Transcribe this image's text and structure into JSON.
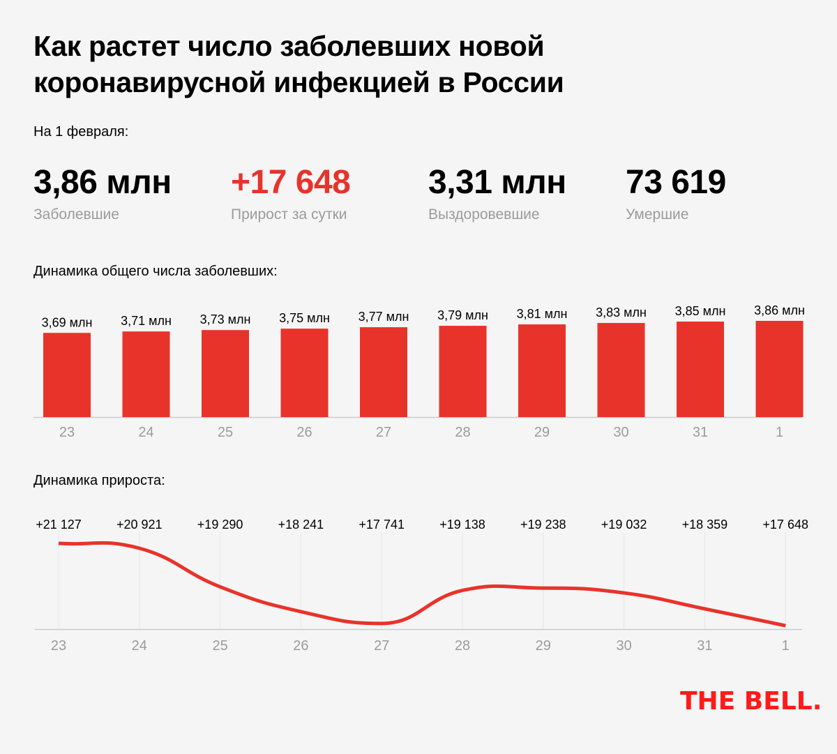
{
  "header": {
    "title_line1": "Как растет число заболевших новой",
    "title_line2": "коронавирусной инфекцией в России",
    "as_of": "На 1 февраля:"
  },
  "stats": [
    {
      "value": "3,86 млн",
      "label": "Заболевшие",
      "color": "#000000"
    },
    {
      "value": "+17 648",
      "label": "Прирост за сутки",
      "color": "#e8332a"
    },
    {
      "value": "3,31 млн",
      "label": "Выздоровевшие",
      "color": "#000000"
    },
    {
      "value": "73 619",
      "label": "Умершие",
      "color": "#000000"
    }
  ],
  "colors": {
    "accent": "#e8332a",
    "axis": "#cccccc",
    "tick_text": "#9b9b9b",
    "grid": "#e6e6e6",
    "logo": "#ff1a1a"
  },
  "logo": "THE BELL.",
  "chart_data": [
    {
      "type": "bar",
      "title": "Динамика общего числа заболевших:",
      "categories": [
        "23",
        "24",
        "25",
        "26",
        "27",
        "28",
        "29",
        "30",
        "31",
        "1"
      ],
      "values": [
        3.69,
        3.71,
        3.73,
        3.75,
        3.77,
        3.79,
        3.81,
        3.83,
        3.85,
        3.86
      ],
      "data_labels": [
        "3,69 млн",
        "3,71 млн",
        "3,73 млн",
        "3,75 млн",
        "3,77 млн",
        "3,79 млн",
        "3,81 млн",
        "3,83 млн",
        "3,85 млн",
        "3,86 млн"
      ],
      "unit": "млн",
      "xlabel": "",
      "ylabel": "",
      "ylim": [
        0,
        3.86
      ],
      "grid": false
    },
    {
      "type": "line",
      "title": "Динамика прироста:",
      "categories": [
        "23",
        "24",
        "25",
        "26",
        "27",
        "28",
        "29",
        "30",
        "31",
        "1"
      ],
      "values": [
        21127,
        20921,
        19290,
        18241,
        17741,
        19138,
        19238,
        19032,
        18359,
        17648
      ],
      "data_labels": [
        "+21 127",
        "+20 921",
        "+19 290",
        "+18 241",
        "+17 741",
        "+19 138",
        "+19 238",
        "+19 032",
        "+18 359",
        "+17 648"
      ],
      "xlabel": "",
      "ylabel": "",
      "ylim": [
        17500,
        21127
      ],
      "grid": true,
      "smooth": true
    }
  ]
}
